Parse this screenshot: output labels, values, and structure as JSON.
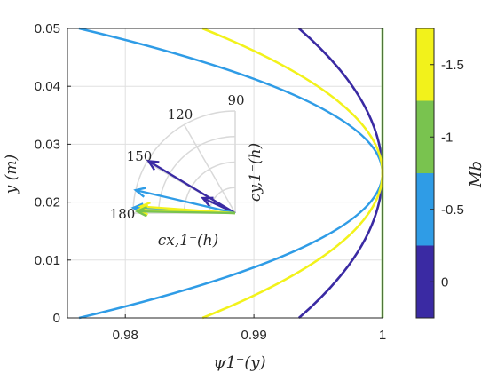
{
  "chart_data": {
    "type": "line",
    "xlabel": "ψ1⁻(y)",
    "ylabel": "y (m)",
    "xlim": [
      0.9755,
      1.0
    ],
    "ylim": [
      0,
      0.05
    ],
    "x_ticks": [
      0.98,
      0.99,
      1.0
    ],
    "x_tick_labels": [
      "0.98",
      "0.99",
      "1"
    ],
    "y_ticks": [
      0,
      0.01,
      0.02,
      0.03,
      0.04,
      0.05
    ],
    "y_tick_labels": [
      "0",
      "0.01",
      "0.02",
      "0.03",
      "0.04",
      "0.05"
    ],
    "grid": true,
    "colors": {
      "m0": "#3a2aa3",
      "m05": "#2f9ce6",
      "m1": "#79c34f",
      "m15": "#f2f21b",
      "grid": "#e0e0e0",
      "axis": "#262626"
    },
    "series": [
      {
        "color_key": "m0",
        "x": [
          0.9935,
          0.9985,
          1.0,
          0.9985,
          0.9935
        ],
        "y": [
          0.0,
          0.0125,
          0.025,
          0.0375,
          0.05
        ]
      },
      {
        "color_key": "m05",
        "x": [
          0.9764,
          0.9941,
          1.0,
          0.9941,
          0.9764
        ],
        "y": [
          0.0,
          0.0125,
          0.025,
          0.0375,
          0.05
        ]
      },
      {
        "color_key": "m1",
        "x": [
          1.0,
          1.0,
          1.0,
          1.0,
          1.0
        ],
        "y": [
          0.0,
          0.0125,
          0.025,
          0.0375,
          0.05
        ]
      },
      {
        "color_key": "m15",
        "x": [
          0.986,
          0.9965,
          1.0,
          0.9965,
          0.986
        ],
        "y": [
          0.0,
          0.0125,
          0.025,
          0.0375,
          0.05
        ]
      }
    ],
    "colorbar": {
      "label": "Mb",
      "tick_labels": [
        "0",
        "-0.5",
        "-1",
        "-1.5"
      ],
      "color_keys": [
        "m0",
        "m05",
        "m1",
        "m15"
      ]
    },
    "inset_polar": {
      "angle_labels": [
        "90",
        "120",
        "150",
        "180"
      ],
      "angles": [
        90,
        120,
        150,
        180
      ],
      "x_label": "cx,1⁻(h)",
      "y_label": "cy,1⁻(h)",
      "arrows": [
        {
          "color_key": "m0",
          "angle_deg": 149,
          "length": 0.99
        },
        {
          "color_key": "m0",
          "angle_deg": 155,
          "length": 0.35
        },
        {
          "color_key": "m05",
          "angle_deg": 167,
          "length": 1.0
        },
        {
          "color_key": "m05",
          "angle_deg": 177,
          "length": 1.0
        },
        {
          "color_key": "m15",
          "angle_deg": 176,
          "length": 0.93
        },
        {
          "color_key": "m15",
          "angle_deg": 178,
          "length": 0.95
        },
        {
          "color_key": "m1",
          "angle_deg": 179,
          "length": 0.96
        }
      ]
    }
  }
}
